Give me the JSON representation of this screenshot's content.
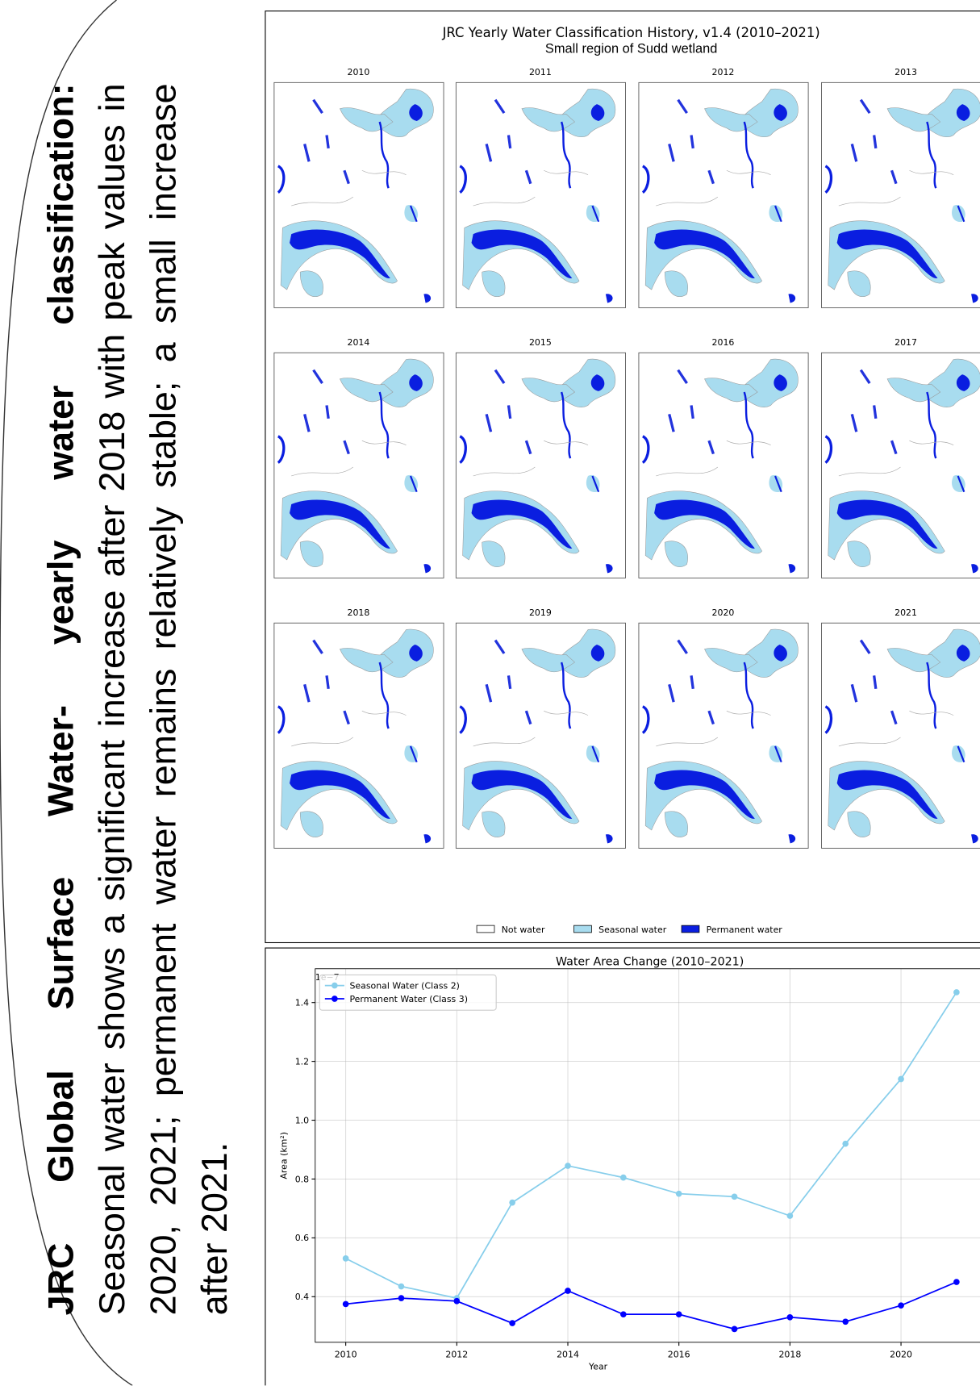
{
  "slide_text": {
    "heading": "JRC Global Surface Water- yearly water classification:",
    "body": "Seasonal water shows a significant increase after 2018 with peak values in 2020, 2021; permanent water remains relatively stable; a small increase after 2021."
  },
  "map_panel": {
    "title": "JRC Yearly Water Classification History, v1.4 (2010–2021)",
    "subtitle": "Small region of Sudd wetland",
    "years": [
      "2010",
      "2011",
      "2012",
      "2013",
      "2014",
      "2015",
      "2016",
      "2017",
      "2018",
      "2019",
      "2020",
      "2021"
    ],
    "legend": [
      "Not water",
      "Seasonal water",
      "Permanent water"
    ]
  },
  "chart_data": {
    "type": "line",
    "title": "Water Area Change (2010–2021)",
    "offset_text": "1e−7",
    "x_label": "Year",
    "y_label": "Area (km²)",
    "x": [
      2010,
      2011,
      2012,
      2013,
      2014,
      2015,
      2016,
      2017,
      2018,
      2019,
      2020,
      2021
    ],
    "xlim": [
      2009.45,
      2021.55
    ],
    "xticks": [
      2010,
      2012,
      2014,
      2016,
      2018,
      2020
    ],
    "ylim": [
      0.245,
      1.515
    ],
    "yticks": [
      0.4,
      0.6,
      0.8,
      {
        "value": 1,
        "label": "1.0"
      },
      1.2,
      1.4
    ],
    "grid": true,
    "legend": "upper left",
    "series": [
      {
        "name": "Seasonal Water (Class 2)",
        "color": "#87ceeb",
        "values": [
          0.53,
          0.435,
          0.395,
          0.72,
          0.845,
          0.805,
          0.75,
          0.74,
          0.675,
          0.92,
          1.14,
          1.435
        ]
      },
      {
        "name": "Permanent Water (Class 3)",
        "color": "#0000ff",
        "values": [
          0.375,
          0.395,
          0.385,
          0.31,
          0.42,
          0.34,
          0.34,
          0.29,
          0.33,
          0.315,
          0.37,
          0.45
        ]
      }
    ]
  }
}
